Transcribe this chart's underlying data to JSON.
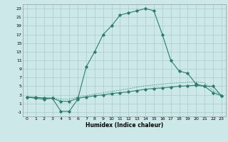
{
  "xlabel": "Humidex (Indice chaleur)",
  "x_values": [
    0,
    1,
    2,
    3,
    4,
    5,
    6,
    7,
    8,
    9,
    10,
    11,
    12,
    13,
    14,
    15,
    16,
    17,
    18,
    19,
    20,
    21,
    22,
    23
  ],
  "line_peak": [
    2.5,
    2.2,
    2.0,
    2.2,
    -0.8,
    -0.8,
    2.0,
    9.5,
    13.0,
    17.0,
    19.0,
    21.5,
    22.0,
    22.5,
    23.0,
    22.5,
    17.0,
    11.0,
    8.5,
    8.0,
    5.5,
    5.0,
    5.0,
    2.8
  ],
  "line_low": [
    2.5,
    2.4,
    2.3,
    2.2,
    1.5,
    1.5,
    2.2,
    2.5,
    2.8,
    3.0,
    3.3,
    3.5,
    3.7,
    4.0,
    4.3,
    4.5,
    4.6,
    4.8,
    5.0,
    5.1,
    5.2,
    5.0,
    3.5,
    2.8
  ],
  "line_dotted": [
    2.5,
    2.4,
    2.3,
    2.3,
    2.0,
    2.0,
    2.5,
    2.8,
    3.2,
    3.5,
    3.8,
    4.1,
    4.4,
    4.8,
    5.1,
    5.3,
    5.5,
    5.7,
    5.8,
    5.9,
    6.0,
    5.8,
    4.0,
    3.0
  ],
  "line_color": "#2d7d6e",
  "bg_color": "#cce8e8",
  "grid_color": "#aacccc",
  "ylim": [
    -2,
    24
  ],
  "xlim": [
    -0.5,
    23.5
  ],
  "yticks": [
    -1,
    1,
    3,
    5,
    7,
    9,
    11,
    13,
    15,
    17,
    19,
    21,
    23
  ],
  "xticks": [
    0,
    1,
    2,
    3,
    4,
    5,
    6,
    7,
    8,
    9,
    10,
    11,
    12,
    13,
    14,
    15,
    16,
    17,
    18,
    19,
    20,
    21,
    22,
    23
  ]
}
